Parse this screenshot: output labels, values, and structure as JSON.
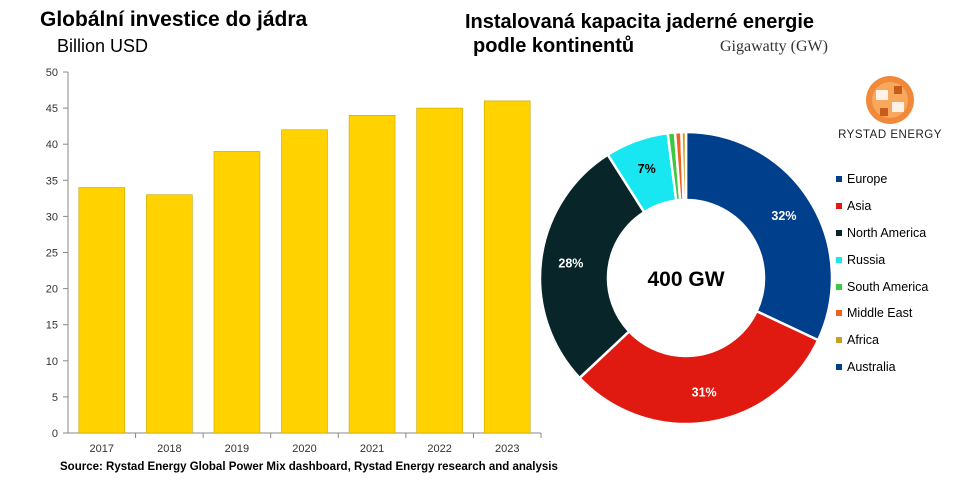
{
  "chart_data": [
    {
      "type": "bar",
      "title": "Globální investice do jádra",
      "subtitle": "Billion USD",
      "categories": [
        "2017",
        "2018",
        "2019",
        "2020",
        "2021",
        "2022",
        "2023"
      ],
      "values": [
        34,
        33,
        39,
        42,
        44,
        45,
        46
      ],
      "ylim": [
        0,
        50
      ],
      "yticks": [
        0,
        5,
        10,
        15,
        20,
        25,
        30,
        35,
        40,
        45,
        50
      ],
      "color": "#ffd200",
      "grid": false
    },
    {
      "type": "pie",
      "title": "Instalovaná kapacita jaderné energie podle kontinentů",
      "unit": "Gigawatty (GW)",
      "center_label": "400 GW",
      "legend_position": "right",
      "slices": [
        {
          "name": "Europe",
          "value": 32,
          "label": "32%",
          "color": "#003f8c"
        },
        {
          "name": "Asia",
          "value": 31,
          "label": "31%",
          "color": "#e01a10"
        },
        {
          "name": "North America",
          "value": 28,
          "label": "28%",
          "color": "#082529"
        },
        {
          "name": "Russia",
          "value": 7,
          "label": "7%",
          "color": "#18e6f0"
        },
        {
          "name": "South America",
          "value": 0.8,
          "label": "",
          "color": "#3cc840"
        },
        {
          "name": "Middle East",
          "value": 0.7,
          "label": "",
          "color": "#f06020"
        },
        {
          "name": "Africa",
          "value": 0.5,
          "label": "",
          "color": "#c8a020"
        },
        {
          "name": "Australia",
          "value": 0,
          "label": "",
          "color": "#003f8c"
        }
      ]
    }
  ],
  "source": "Source: Rystad Energy Global Power Mix dashboard, Rystad Energy research and analysis",
  "logo": {
    "text": "RYSTAD ENERGY",
    "icon": "rystad-logo-icon"
  }
}
